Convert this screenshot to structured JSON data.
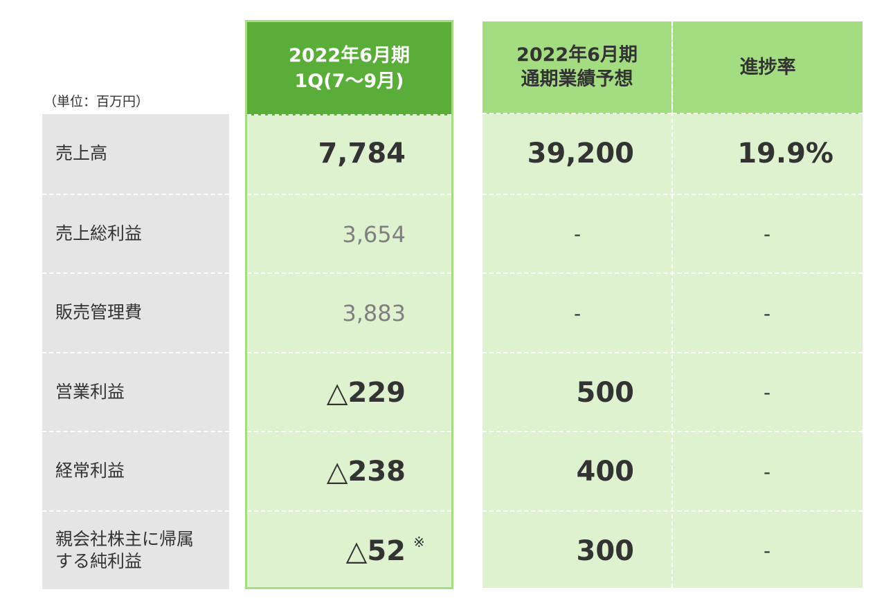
{
  "unit_label": "（単位：百万円）",
  "headers": {
    "q1": [
      "2022年6月期",
      "1Q(7～9月)"
    ],
    "forecast": [
      "2022年6月期",
      "通期業績予想"
    ],
    "progress": "進捗率"
  },
  "rows": [
    {
      "label": [
        "売上高"
      ],
      "q1": "7,784",
      "forecast": "39,200",
      "progress": "19.9%"
    },
    {
      "label": [
        "売上総利益"
      ],
      "q1": "3,654",
      "forecast": "-",
      "progress": "-"
    },
    {
      "label": [
        "販売管理費"
      ],
      "q1": "3,883",
      "forecast": "-",
      "progress": "-"
    },
    {
      "label": [
        "営業利益"
      ],
      "q1": "△229",
      "forecast": "500",
      "progress": "-"
    },
    {
      "label": [
        "経常利益"
      ],
      "q1": "△238",
      "forecast": "400",
      "progress": "-"
    },
    {
      "label": [
        "親会社株主に帰属",
        "する純利益"
      ],
      "q1": "△52",
      "q1_note": "※",
      "forecast": "300",
      "progress": "-"
    }
  ],
  "colors": {
    "q1_header": "#5aad38",
    "forecast_header": "#a4dc82",
    "cell_fill": "#def2cf",
    "label_fill": "#e5e5e5"
  }
}
